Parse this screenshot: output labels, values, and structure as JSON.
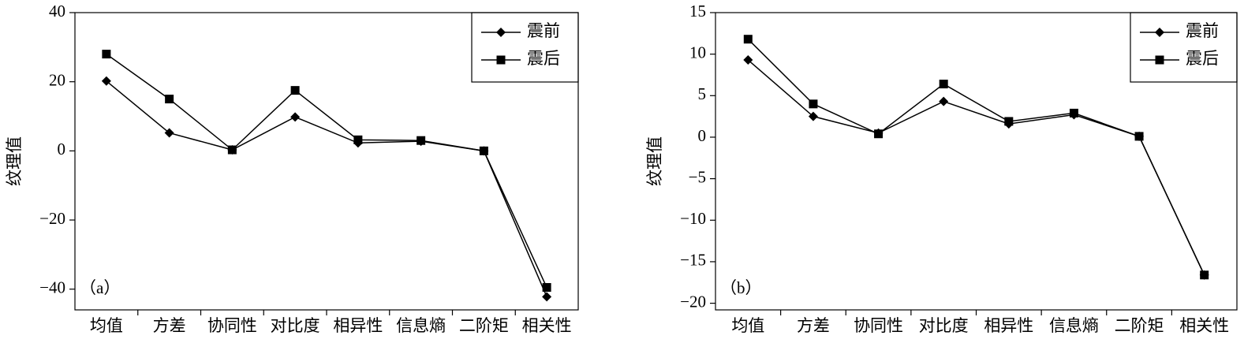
{
  "chart_data": [
    {
      "type": "line",
      "ylabel": "纹理值",
      "annotation": "（a）",
      "categories": [
        "均值",
        "方差",
        "协同性",
        "对比度",
        "相异性",
        "信息熵",
        "二阶矩",
        "相关性"
      ],
      "series": [
        {
          "name": "震前",
          "color": "#000000",
          "marker": "diamond",
          "values": [
            20.2,
            5.2,
            0.3,
            9.8,
            2.3,
            2.8,
            0,
            -42.2
          ]
        },
        {
          "name": "震后",
          "color": "#000000",
          "marker": "square",
          "values": [
            28,
            15,
            0.3,
            17.5,
            3.2,
            3.0,
            0,
            -39.5
          ]
        }
      ],
      "ylim": [
        -46,
        40
      ],
      "yticks": [
        {
          "value": -40,
          "label": "−40"
        },
        {
          "value": -20,
          "label": "−20"
        },
        0,
        20,
        40
      ],
      "legend": "upper right"
    },
    {
      "type": "line",
      "ylabel": "纹理值",
      "annotation": "（b）",
      "categories": [
        "均值",
        "方差",
        "协同性",
        "对比度",
        "相异性",
        "信息熵",
        "二阶矩",
        "相关性"
      ],
      "series": [
        {
          "name": "震前",
          "color": "#000000",
          "marker": "diamond",
          "values": [
            9.3,
            2.5,
            0.5,
            4.3,
            1.6,
            2.7,
            0.1,
            -16.6
          ]
        },
        {
          "name": "震后",
          "color": "#000000",
          "marker": "square",
          "values": [
            11.8,
            4.0,
            0.4,
            6.4,
            1.9,
            2.9,
            0.1,
            -16.6
          ]
        }
      ],
      "ylim": [
        -20.8,
        15
      ],
      "yticks": [
        {
          "value": -20,
          "label": "−20"
        },
        {
          "value": -15,
          "label": "−15"
        },
        {
          "value": -10,
          "label": "−10"
        },
        {
          "value": -5,
          "label": "−5"
        },
        0,
        5,
        10,
        15
      ],
      "legend": "upper right"
    }
  ]
}
